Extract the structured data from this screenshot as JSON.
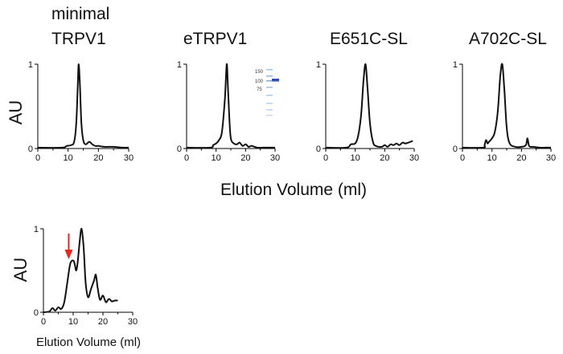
{
  "figure": {
    "shared_xlabel": "Elution Volume (ml)",
    "ylabel": "AU"
  },
  "chart_data": [
    {
      "type": "line",
      "title_lines": [
        "minimal",
        "TRPV1"
      ],
      "xlim": [
        0,
        30
      ],
      "ylim": [
        0,
        1
      ],
      "xticks": [
        "0",
        "10",
        "20",
        "30"
      ],
      "yticks": [
        "0",
        "1"
      ],
      "ylabel": "AU",
      "series": [
        {
          "x": [
            0,
            8,
            9.5,
            11,
            12,
            12.7,
            13.2,
            13.5,
            13.9,
            14.4,
            15,
            15.8,
            17,
            18,
            19,
            20,
            22,
            25,
            28,
            30
          ],
          "y": [
            0.01,
            0.01,
            0.03,
            0.04,
            0.08,
            0.3,
            0.75,
            1.0,
            0.75,
            0.3,
            0.1,
            0.05,
            0.08,
            0.05,
            0.03,
            0.03,
            0.02,
            0.02,
            0.01,
            0.01
          ]
        }
      ]
    },
    {
      "type": "line",
      "title_lines": [
        "eTRPV1"
      ],
      "xlim": [
        0,
        30
      ],
      "ylim": [
        0,
        1
      ],
      "xticks": [
        "0",
        "10",
        "20",
        "30"
      ],
      "yticks": [
        "0",
        "1"
      ],
      "series": [
        {
          "x": [
            0,
            8,
            9,
            10,
            11,
            12,
            13,
            13.6,
            14,
            14.5,
            15,
            16,
            17,
            18,
            19,
            20,
            21,
            22,
            24,
            26,
            30
          ],
          "y": [
            0.01,
            0.01,
            0.04,
            0.06,
            0.1,
            0.2,
            0.6,
            1.0,
            0.75,
            0.35,
            0.12,
            0.06,
            0.05,
            0.07,
            0.03,
            0.05,
            0.02,
            0.03,
            0.01,
            0.01,
            0.01
          ]
        }
      ],
      "inset": {
        "type": "gel",
        "ladder_labels": [
          "150",
          "100",
          "75"
        ]
      }
    },
    {
      "type": "line",
      "title_lines": [
        "E651C-SL"
      ],
      "xlim": [
        0,
        30
      ],
      "ylim": [
        0,
        1
      ],
      "xticks": [
        "0",
        "10",
        "20",
        "30"
      ],
      "yticks": [
        "0",
        "1"
      ],
      "series": [
        {
          "x": [
            0,
            7,
            8.5,
            10,
            11,
            12,
            12.8,
            13.5,
            14.2,
            15,
            16,
            17,
            19,
            20,
            21,
            22,
            23,
            24,
            25,
            26,
            27,
            28,
            29.5
          ],
          "y": [
            0.01,
            0.01,
            0.05,
            0.06,
            0.15,
            0.4,
            0.8,
            1.0,
            0.7,
            0.3,
            0.08,
            0.03,
            0.02,
            0.04,
            0.02,
            0.05,
            0.04,
            0.06,
            0.04,
            0.07,
            0.06,
            0.07,
            0.09
          ]
        }
      ]
    },
    {
      "type": "line",
      "title_lines": [
        "A702C-SL"
      ],
      "xlim": [
        0,
        30
      ],
      "ylim": [
        0,
        1
      ],
      "xticks": [
        "0",
        "10",
        "20",
        "30"
      ],
      "yticks": [
        "0",
        "1"
      ],
      "series": [
        {
          "x": [
            0,
            7,
            7.5,
            8,
            8.5,
            9,
            10,
            11,
            12,
            12.8,
            13.5,
            14.2,
            15,
            16,
            18,
            20,
            21.5,
            22,
            22.5,
            23,
            24,
            26,
            28,
            30
          ],
          "y": [
            0.01,
            0.01,
            0.04,
            0.1,
            0.06,
            0.08,
            0.12,
            0.2,
            0.45,
            0.85,
            1.0,
            0.7,
            0.25,
            0.06,
            0.02,
            0.02,
            0.04,
            0.12,
            0.04,
            0.02,
            0.02,
            0.01,
            0.01,
            0.01
          ]
        }
      ]
    },
    {
      "type": "line",
      "title_lines": [],
      "xlim": [
        0,
        30
      ],
      "ylim": [
        0,
        1
      ],
      "xticks": [
        "0",
        "10",
        "20",
        "30"
      ],
      "yticks": [
        "0",
        "1"
      ],
      "ylabel": "AU",
      "xlabel": "Elution Volume (ml)",
      "annotation": {
        "type": "arrow",
        "color": "#e8281e",
        "x": 8.5
      },
      "series": [
        {
          "x": [
            0,
            2,
            3,
            4,
            5,
            6,
            7,
            8,
            9,
            10,
            10.5,
            11,
            11.5,
            12.2,
            12.8,
            13.5,
            14.2,
            15,
            16,
            17,
            17.6,
            18.2,
            19,
            20,
            21,
            22,
            23,
            24,
            25
          ],
          "y": [
            0,
            0.01,
            0.05,
            0.02,
            0.06,
            0.04,
            0.12,
            0.35,
            0.58,
            0.62,
            0.58,
            0.5,
            0.6,
            0.85,
            1.0,
            0.78,
            0.35,
            0.18,
            0.28,
            0.38,
            0.45,
            0.3,
            0.15,
            0.2,
            0.12,
            0.16,
            0.13,
            0.14,
            0.14
          ]
        }
      ]
    }
  ]
}
